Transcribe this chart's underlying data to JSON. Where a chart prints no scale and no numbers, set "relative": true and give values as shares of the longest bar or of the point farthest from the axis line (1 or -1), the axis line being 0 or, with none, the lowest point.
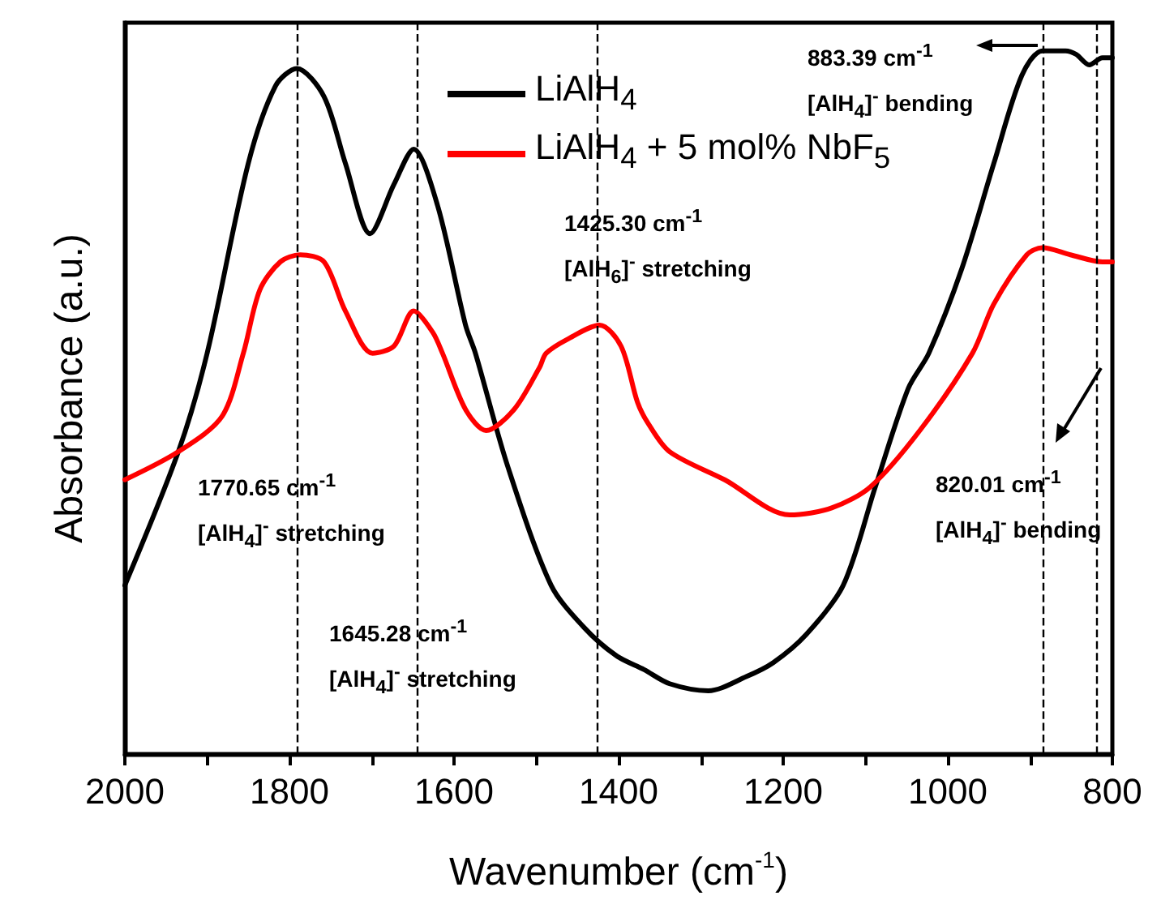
{
  "chart_data": {
    "type": "line",
    "relative": true,
    "xlabel": "Wavenumber (cm$^{-1}$)",
    "ylabel": "Absorbance (a.u.)",
    "xlim": [
      2000,
      800
    ],
    "xticks": [
      2000,
      {
        "value": 1900,
        "label": null
      },
      1800,
      {
        "value": 1700,
        "label": null
      },
      1600,
      {
        "value": 1500,
        "label": null
      },
      1400,
      {
        "value": 1300,
        "label": null
      },
      1200,
      {
        "value": 1100,
        "label": null
      },
      1000,
      {
        "value": 900,
        "label": null
      },
      800
    ],
    "tick_labels": "x",
    "legend": "top",
    "grid": false,
    "series": [
      {
        "name": "LiAlH$_{4}$",
        "color": "#000000",
        "x": [
          2000,
          1935,
          1900,
          1850,
          1817,
          1791,
          1758,
          1732,
          1702,
          1673,
          1649,
          1620,
          1586,
          1574,
          1535,
          1482,
          1442,
          1403,
          1369,
          1338,
          1291,
          1245,
          1212,
          1172,
          1127,
          1088,
          1048,
          1023,
          983,
          944,
          910,
          885,
          857,
          844,
          828,
          812,
          800
        ],
        "values": [
          0.24,
          0.43,
          0.57,
          0.84,
          0.95,
          0.975,
          0.935,
          0.84,
          0.74,
          0.81,
          0.86,
          0.78,
          0.61,
          0.57,
          0.41,
          0.24,
          0.18,
          0.14,
          0.12,
          0.1,
          0.09,
          0.11,
          0.13,
          0.17,
          0.24,
          0.38,
          0.52,
          0.57,
          0.69,
          0.84,
          0.965,
          1.0,
          1.0,
          0.995,
          0.98,
          0.99,
          0.99
        ]
      },
      {
        "name": "LiAlH$_{4}$ + 5 mol% NbF$_{5}$",
        "color": "#ff0000",
        "x": [
          2000,
          1935,
          1882,
          1856,
          1836,
          1811,
          1787,
          1758,
          1732,
          1699,
          1673,
          1649,
          1626,
          1614,
          1586,
          1561,
          1527,
          1496,
          1488,
          1462,
          1423,
          1397,
          1377,
          1364,
          1338,
          1271,
          1192,
          1141,
          1094,
          1034,
          970,
          944,
          904,
          885,
          851,
          812,
          800
        ],
        "values": [
          0.39,
          0.43,
          0.48,
          0.57,
          0.66,
          0.7,
          0.71,
          0.7,
          0.63,
          0.57,
          0.58,
          0.63,
          0.6,
          0.57,
          0.49,
          0.46,
          0.49,
          0.55,
          0.57,
          0.59,
          0.61,
          0.58,
          0.5,
          0.47,
          0.43,
          0.39,
          0.34,
          0.35,
          0.38,
          0.46,
          0.57,
          0.64,
          0.71,
          0.72,
          0.71,
          0.7,
          0.7
        ]
      }
    ],
    "ref_lines": [
      {
        "axis": "x",
        "value": 1790,
        "color": "#000000",
        "line_style": "dashed"
      },
      {
        "axis": "x",
        "value": 1645.28,
        "color": "#000000",
        "line_style": "dashed"
      },
      {
        "axis": "x",
        "value": 1425.3,
        "color": "#000000",
        "line_style": "dashed"
      },
      {
        "axis": "x",
        "value": 883.39,
        "color": "#000000",
        "line_style": "dashed"
      },
      {
        "axis": "x",
        "value": 820.01,
        "color": "#000000",
        "line_style": "dashed"
      }
    ],
    "annotations": [
      "1770.65 cm$^{-1}$\n[AlH$_{4}$]$^{-}$ stretching",
      "1645.28 cm$^{-1}$\n[AlH$_{4}$]$^{-}$ stretching",
      "1425.30 cm$^{-1}$\n[AlH$_{6}$]$^{-}$ stretching",
      "883.39 cm$^{-1}$\n[AlH$_{4}$]$^{-}$ bending",
      "820.01 cm$^{-1}$\n[AlH$_{4}$]$^{-}$ bending"
    ]
  }
}
